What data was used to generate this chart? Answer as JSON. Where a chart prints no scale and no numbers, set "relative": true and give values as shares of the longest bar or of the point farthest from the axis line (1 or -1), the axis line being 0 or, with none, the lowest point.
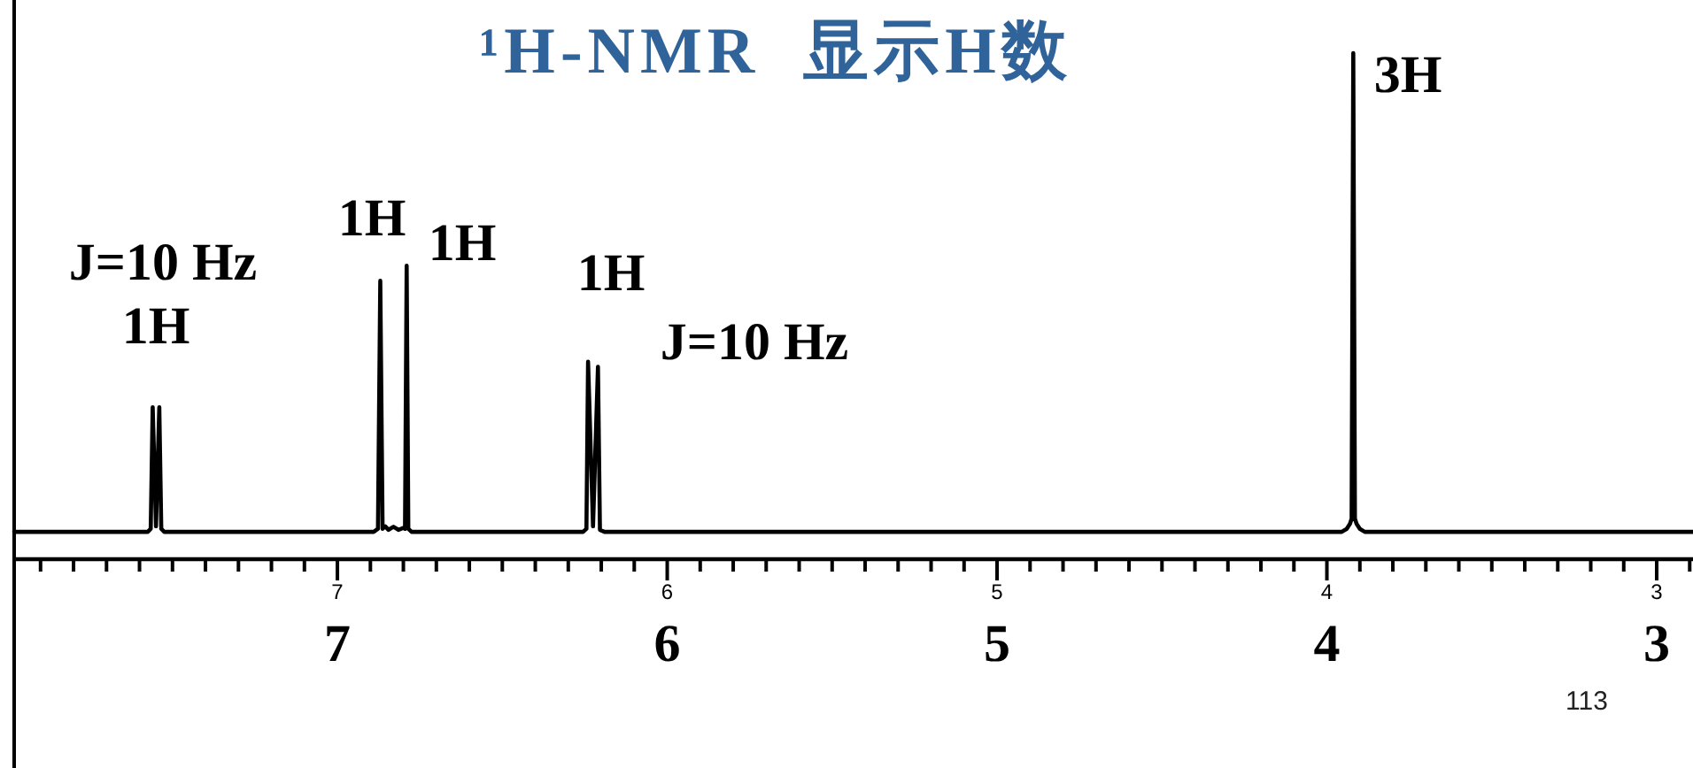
{
  "chart_data": {
    "type": "line",
    "title": "¹H-NMR  显示H数",
    "relative": true,
    "tick_labels": "x",
    "x": [
      7.98,
      7.575,
      7.566,
      7.56,
      7.55,
      7.54,
      7.534,
      7.525,
      6.89,
      6.877,
      6.87,
      6.863,
      6.855,
      6.845,
      6.83,
      6.815,
      6.8,
      6.795,
      6.79,
      6.785,
      6.775,
      6.255,
      6.245,
      6.24,
      6.225,
      6.21,
      6.204,
      6.19,
      3.955,
      3.94,
      3.93,
      3.925,
      3.92,
      3.915,
      3.91,
      3.9,
      3.885,
      2.89
    ],
    "series": [
      {
        "color": "#000000",
        "values": [
          0.054,
          0.054,
          0.06,
          0.3,
          0.065,
          0.3,
          0.06,
          0.054,
          0.054,
          0.06,
          0.55,
          0.06,
          0.065,
          0.058,
          0.064,
          0.058,
          0.062,
          0.06,
          0.58,
          0.06,
          0.054,
          0.054,
          0.06,
          0.39,
          0.065,
          0.38,
          0.058,
          0.054,
          0.054,
          0.06,
          0.07,
          0.08,
          1,
          0.08,
          0.07,
          0.06,
          0.054,
          0.054
        ]
      }
    ],
    "xlim": [
      7.98,
      2.89
    ],
    "xticks": [
      {
        "value": 7.9,
        "label": null
      },
      {
        "value": 7.8,
        "label": null
      },
      {
        "value": 7.7,
        "label": null
      },
      {
        "value": 7.6,
        "label": null
      },
      {
        "value": 7.5,
        "label": null
      },
      {
        "value": 7.4,
        "label": null
      },
      {
        "value": 7.3,
        "label": null
      },
      {
        "value": 7.2,
        "label": null
      },
      {
        "value": 7.1,
        "label": null
      },
      7,
      {
        "value": 6.9,
        "label": null
      },
      {
        "value": 6.8,
        "label": null
      },
      {
        "value": 6.7,
        "label": null
      },
      {
        "value": 6.6,
        "label": null
      },
      {
        "value": 6.5,
        "label": null
      },
      {
        "value": 6.4,
        "label": null
      },
      {
        "value": 6.3,
        "label": null
      },
      {
        "value": 6.2,
        "label": null
      },
      {
        "value": 6.1,
        "label": null
      },
      6,
      {
        "value": 5.9,
        "label": null
      },
      {
        "value": 5.8,
        "label": null
      },
      {
        "value": 5.7,
        "label": null
      },
      {
        "value": 5.6,
        "label": null
      },
      {
        "value": 5.5,
        "label": null
      },
      {
        "value": 5.4,
        "label": null
      },
      {
        "value": 5.3,
        "label": null
      },
      {
        "value": 5.2,
        "label": null
      },
      {
        "value": 5.1,
        "label": null
      },
      5,
      {
        "value": 4.9,
        "label": null
      },
      {
        "value": 4.8,
        "label": null
      },
      {
        "value": 4.7,
        "label": null
      },
      {
        "value": 4.6,
        "label": null
      },
      {
        "value": 4.5,
        "label": null
      },
      {
        "value": 4.4,
        "label": null
      },
      {
        "value": 4.3,
        "label": null
      },
      {
        "value": 4.2,
        "label": null
      },
      {
        "value": 4.1,
        "label": null
      },
      4,
      {
        "value": 3.9,
        "label": null
      },
      {
        "value": 3.8,
        "label": null
      },
      {
        "value": 3.7,
        "label": null
      },
      {
        "value": 3.6,
        "label": null
      },
      {
        "value": 3.5,
        "label": null
      },
      {
        "value": 3.4,
        "label": null
      },
      {
        "value": 3.3,
        "label": null
      },
      {
        "value": 3.2,
        "label": null
      },
      {
        "value": 3.1,
        "label": null
      },
      3,
      {
        "value": 2.9,
        "label": null
      }
    ],
    "x2lim": [
      7.98,
      2.89
    ],
    "x2ticks": [
      7,
      6,
      5,
      4,
      3
    ],
    "annotations": [
      "J=10 Hz",
      "1H",
      "1H",
      "1H",
      "1H",
      "J=10 Hz",
      "3H",
      "113"
    ]
  }
}
